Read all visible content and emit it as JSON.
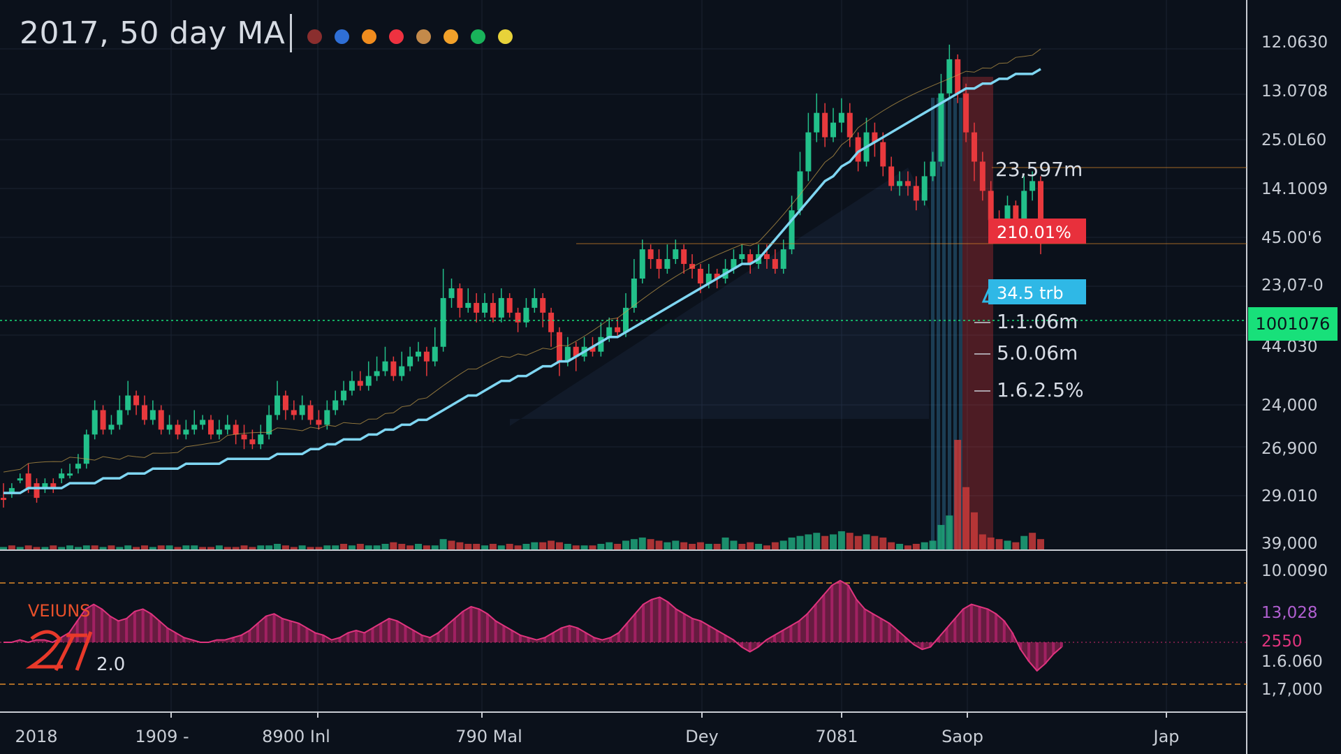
{
  "title": "2017, 50 day MA",
  "legend_dots": [
    "#8a2e2e",
    "#2f6fd6",
    "#f08c1e",
    "#ee3240",
    "#c48a4a",
    "#f2a12a",
    "#19b35a",
    "#e8d23a"
  ],
  "colors": {
    "up": "#22c08a",
    "down": "#e8393d",
    "ma": "#7fd6f2",
    "bg": "#0b111b",
    "grid": "#1b2432",
    "indicator": "#d42a6e",
    "current_price_badge": "#18e07a",
    "pct_badge": "#e8303c",
    "trb_badge": "#2fb8e6"
  },
  "chart_data": {
    "type": "candlestick",
    "title": "2017, 50 day MA",
    "y_tick_labels": [
      "12.0630",
      "13.0708",
      "25.0L60",
      "14.1009",
      "45.00'6",
      "23,07-0",
      "44.030",
      "24,000",
      "26,900",
      "29.010",
      "39,000"
    ],
    "x_tick_labels": [
      "2018",
      "1909 -",
      "8900 Inl",
      "790 Mal",
      "Dey",
      "7081",
      "Saop",
      "Jap"
    ],
    "indicator_tick_labels": [
      "10.0090",
      "13,028",
      "2550",
      "1.6.060",
      "1,7,000"
    ],
    "current_price_label": "1001076",
    "annotations": [
      "23,597m",
      "210.01%",
      "34.5 trb",
      "1.1.06m",
      "5.0.06m",
      "1.6.2.5%"
    ],
    "indicator_label": "VEIUNS",
    "indicator_value": "2.0",
    "ma_label": "50 day MA",
    "price_scale": "relative, 0 = chart bottom, 100 = chart top",
    "candles": [
      [
        5,
        5,
        8,
        3,
        "d"
      ],
      [
        7,
        6,
        8,
        5,
        "u"
      ],
      [
        9,
        9,
        10,
        8,
        "u"
      ],
      [
        10,
        7,
        12,
        6,
        "d"
      ],
      [
        8,
        5,
        9,
        4,
        "d"
      ],
      [
        7,
        8,
        9,
        6,
        "u"
      ],
      [
        8,
        7,
        9,
        6,
        "d"
      ],
      [
        9,
        10,
        11,
        8,
        "u"
      ],
      [
        10,
        10,
        12,
        9,
        "u"
      ],
      [
        11,
        12,
        14,
        10,
        "u"
      ],
      [
        12,
        18,
        19,
        11,
        "u"
      ],
      [
        18,
        23,
        25,
        17,
        "u"
      ],
      [
        23,
        19,
        24,
        18,
        "d"
      ],
      [
        19,
        20,
        22,
        18,
        "u"
      ],
      [
        20,
        23,
        26,
        19,
        "u"
      ],
      [
        23,
        26,
        29,
        22,
        "u"
      ],
      [
        26,
        24,
        27,
        22,
        "d"
      ],
      [
        24,
        21,
        26,
        20,
        "d"
      ],
      [
        21,
        23,
        25,
        20,
        "u"
      ],
      [
        23,
        19,
        24,
        18,
        "d"
      ],
      [
        19,
        20,
        22,
        18,
        "u"
      ],
      [
        20,
        18,
        21,
        17,
        "d"
      ],
      [
        18,
        19,
        21,
        17,
        "u"
      ],
      [
        19,
        20,
        23,
        18,
        "u"
      ],
      [
        20,
        21,
        22,
        19,
        "u"
      ],
      [
        21,
        18,
        22,
        17,
        "d"
      ],
      [
        18,
        19,
        21,
        17,
        "u"
      ],
      [
        19,
        20,
        22,
        18,
        "u"
      ],
      [
        20,
        18,
        21,
        16,
        "d"
      ],
      [
        18,
        17,
        20,
        15,
        "d"
      ],
      [
        17,
        16,
        19,
        15,
        "d"
      ],
      [
        16,
        18,
        20,
        15,
        "u"
      ],
      [
        18,
        22,
        24,
        17,
        "u"
      ],
      [
        22,
        26,
        29,
        21,
        "u"
      ],
      [
        26,
        23,
        27,
        21,
        "d"
      ],
      [
        23,
        22,
        25,
        21,
        "d"
      ],
      [
        22,
        24,
        26,
        21,
        "u"
      ],
      [
        24,
        21,
        25,
        20,
        "d"
      ],
      [
        21,
        20,
        23,
        19,
        "d"
      ],
      [
        20,
        23,
        25,
        19,
        "u"
      ],
      [
        23,
        25,
        27,
        22,
        "u"
      ],
      [
        25,
        27,
        29,
        24,
        "u"
      ],
      [
        27,
        29,
        31,
        26,
        "u"
      ],
      [
        29,
        28,
        31,
        27,
        "d"
      ],
      [
        28,
        30,
        33,
        27,
        "u"
      ],
      [
        30,
        31,
        34,
        29,
        "u"
      ],
      [
        31,
        33,
        36,
        30,
        "u"
      ],
      [
        33,
        30,
        34,
        29,
        "d"
      ],
      [
        30,
        32,
        35,
        29,
        "u"
      ],
      [
        32,
        34,
        36,
        31,
        "u"
      ],
      [
        34,
        35,
        37,
        33,
        "u"
      ],
      [
        35,
        33,
        36,
        30,
        "d"
      ],
      [
        33,
        36,
        40,
        32,
        "u"
      ],
      [
        36,
        46,
        52,
        35,
        "u"
      ],
      [
        46,
        48,
        50,
        44,
        "u"
      ],
      [
        48,
        44,
        49,
        42,
        "d"
      ],
      [
        44,
        45,
        48,
        43,
        "u"
      ],
      [
        45,
        43,
        47,
        41,
        "d"
      ],
      [
        43,
        45,
        47,
        42,
        "u"
      ],
      [
        45,
        42,
        47,
        41,
        "d"
      ],
      [
        42,
        46,
        48,
        41,
        "u"
      ],
      [
        46,
        43,
        47,
        42,
        "d"
      ],
      [
        43,
        41,
        44,
        39,
        "d"
      ],
      [
        41,
        44,
        46,
        40,
        "u"
      ],
      [
        44,
        46,
        48,
        43,
        "u"
      ],
      [
        46,
        43,
        47,
        40,
        "d"
      ],
      [
        43,
        39,
        44,
        36,
        "d"
      ],
      [
        39,
        33,
        40,
        30,
        "d"
      ],
      [
        33,
        36,
        38,
        32,
        "u"
      ],
      [
        36,
        34,
        37,
        31,
        "d"
      ],
      [
        34,
        36,
        38,
        33,
        "u"
      ],
      [
        36,
        35,
        38,
        34,
        "d"
      ],
      [
        35,
        38,
        41,
        34,
        "u"
      ],
      [
        38,
        40,
        42,
        37,
        "u"
      ],
      [
        40,
        39,
        42,
        38,
        "d"
      ],
      [
        39,
        44,
        47,
        38,
        "u"
      ],
      [
        44,
        50,
        54,
        43,
        "u"
      ],
      [
        50,
        56,
        58,
        49,
        "u"
      ],
      [
        56,
        54,
        57,
        52,
        "d"
      ],
      [
        54,
        52,
        56,
        50,
        "d"
      ],
      [
        52,
        54,
        57,
        51,
        "u"
      ],
      [
        54,
        56,
        58,
        53,
        "u"
      ],
      [
        56,
        53,
        57,
        51,
        "d"
      ],
      [
        53,
        52,
        55,
        50,
        "d"
      ],
      [
        52,
        49,
        53,
        47,
        "d"
      ],
      [
        49,
        51,
        53,
        48,
        "u"
      ],
      [
        51,
        50,
        52,
        48,
        "d"
      ],
      [
        50,
        52,
        54,
        49,
        "u"
      ],
      [
        52,
        54,
        56,
        51,
        "u"
      ],
      [
        54,
        55,
        57,
        53,
        "u"
      ],
      [
        55,
        53,
        56,
        51,
        "d"
      ],
      [
        53,
        55,
        57,
        52,
        "u"
      ],
      [
        55,
        54,
        57,
        52,
        "d"
      ],
      [
        54,
        52,
        56,
        51,
        "d"
      ],
      [
        52,
        56,
        58,
        51,
        "u"
      ],
      [
        56,
        64,
        67,
        55,
        "u"
      ],
      [
        64,
        72,
        76,
        63,
        "u"
      ],
      [
        72,
        80,
        84,
        70,
        "u"
      ],
      [
        80,
        84,
        88,
        78,
        "u"
      ],
      [
        84,
        79,
        86,
        77,
        "d"
      ],
      [
        79,
        82,
        85,
        78,
        "u"
      ],
      [
        82,
        84,
        87,
        80,
        "u"
      ],
      [
        84,
        79,
        86,
        77,
        "d"
      ],
      [
        79,
        74,
        80,
        72,
        "d"
      ],
      [
        74,
        80,
        83,
        73,
        "u"
      ],
      [
        80,
        78,
        82,
        75,
        "d"
      ],
      [
        78,
        73,
        80,
        71,
        "d"
      ],
      [
        73,
        69,
        75,
        68,
        "d"
      ],
      [
        69,
        70,
        72,
        67,
        "u"
      ],
      [
        70,
        69,
        72,
        67,
        "d"
      ],
      [
        69,
        66,
        71,
        64,
        "d"
      ],
      [
        66,
        71,
        74,
        65,
        "u"
      ],
      [
        71,
        74,
        76,
        70,
        "u"
      ],
      [
        74,
        88,
        92,
        73,
        "u"
      ],
      [
        88,
        95,
        98,
        87,
        "u"
      ],
      [
        95,
        88,
        96,
        86,
        "d"
      ],
      [
        88,
        80,
        90,
        78,
        "d"
      ],
      [
        80,
        74,
        82,
        70,
        "d"
      ],
      [
        74,
        68,
        76,
        66,
        "d"
      ],
      [
        68,
        62,
        70,
        60,
        "d"
      ],
      [
        62,
        60,
        64,
        58,
        "d"
      ],
      [
        60,
        65,
        67,
        59,
        "u"
      ],
      [
        65,
        62,
        66,
        58,
        "d"
      ],
      [
        62,
        68,
        71,
        61,
        "u"
      ],
      [
        68,
        70,
        72,
        66,
        "u"
      ],
      [
        70,
        60,
        71,
        55,
        "d"
      ]
    ],
    "volumes": [
      [
        2,
        "u"
      ],
      [
        3,
        "d"
      ],
      [
        2,
        "u"
      ],
      [
        3,
        "d"
      ],
      [
        2,
        "d"
      ],
      [
        2,
        "u"
      ],
      [
        3,
        "d"
      ],
      [
        2,
        "u"
      ],
      [
        3,
        "u"
      ],
      [
        2,
        "u"
      ],
      [
        3,
        "u"
      ],
      [
        3,
        "d"
      ],
      [
        2,
        "u"
      ],
      [
        3,
        "d"
      ],
      [
        2,
        "u"
      ],
      [
        3,
        "u"
      ],
      [
        2,
        "d"
      ],
      [
        3,
        "d"
      ],
      [
        2,
        "u"
      ],
      [
        3,
        "d"
      ],
      [
        3,
        "u"
      ],
      [
        2,
        "d"
      ],
      [
        3,
        "u"
      ],
      [
        3,
        "u"
      ],
      [
        2,
        "d"
      ],
      [
        2,
        "d"
      ],
      [
        3,
        "u"
      ],
      [
        2,
        "d"
      ],
      [
        2,
        "d"
      ],
      [
        3,
        "d"
      ],
      [
        2,
        "d"
      ],
      [
        3,
        "u"
      ],
      [
        3,
        "u"
      ],
      [
        4,
        "u"
      ],
      [
        3,
        "d"
      ],
      [
        2,
        "d"
      ],
      [
        3,
        "u"
      ],
      [
        2,
        "d"
      ],
      [
        2,
        "d"
      ],
      [
        3,
        "u"
      ],
      [
        3,
        "u"
      ],
      [
        4,
        "d"
      ],
      [
        3,
        "u"
      ],
      [
        4,
        "d"
      ],
      [
        3,
        "u"
      ],
      [
        3,
        "u"
      ],
      [
        4,
        "u"
      ],
      [
        5,
        "d"
      ],
      [
        4,
        "d"
      ],
      [
        3,
        "d"
      ],
      [
        4,
        "u"
      ],
      [
        3,
        "d"
      ],
      [
        3,
        "u"
      ],
      [
        7,
        "u"
      ],
      [
        6,
        "d"
      ],
      [
        5,
        "d"
      ],
      [
        4,
        "d"
      ],
      [
        4,
        "d"
      ],
      [
        3,
        "u"
      ],
      [
        4,
        "d"
      ],
      [
        3,
        "u"
      ],
      [
        4,
        "d"
      ],
      [
        3,
        "d"
      ],
      [
        4,
        "u"
      ],
      [
        5,
        "u"
      ],
      [
        5,
        "d"
      ],
      [
        6,
        "d"
      ],
      [
        5,
        "d"
      ],
      [
        4,
        "u"
      ],
      [
        3,
        "d"
      ],
      [
        3,
        "u"
      ],
      [
        3,
        "d"
      ],
      [
        4,
        "u"
      ],
      [
        5,
        "u"
      ],
      [
        4,
        "d"
      ],
      [
        6,
        "u"
      ],
      [
        7,
        "u"
      ],
      [
        8,
        "u"
      ],
      [
        7,
        "d"
      ],
      [
        6,
        "d"
      ],
      [
        5,
        "u"
      ],
      [
        6,
        "u"
      ],
      [
        5,
        "d"
      ],
      [
        4,
        "d"
      ],
      [
        5,
        "d"
      ],
      [
        4,
        "u"
      ],
      [
        4,
        "d"
      ],
      [
        8,
        "u"
      ],
      [
        6,
        "u"
      ],
      [
        4,
        "d"
      ],
      [
        5,
        "d"
      ],
      [
        4,
        "u"
      ],
      [
        3,
        "d"
      ],
      [
        5,
        "d"
      ],
      [
        6,
        "u"
      ],
      [
        8,
        "u"
      ],
      [
        9,
        "u"
      ],
      [
        10,
        "u"
      ],
      [
        11,
        "u"
      ],
      [
        9,
        "d"
      ],
      [
        10,
        "u"
      ],
      [
        12,
        "u"
      ],
      [
        11,
        "d"
      ],
      [
        9,
        "d"
      ],
      [
        10,
        "u"
      ],
      [
        9,
        "d"
      ],
      [
        8,
        "d"
      ],
      [
        5,
        "d"
      ],
      [
        4,
        "u"
      ],
      [
        3,
        "d"
      ],
      [
        4,
        "d"
      ],
      [
        5,
        "u"
      ],
      [
        6,
        "u"
      ],
      [
        16,
        "u"
      ],
      [
        22,
        "u"
      ],
      [
        70,
        "d"
      ],
      [
        40,
        "d"
      ],
      [
        24,
        "d"
      ],
      [
        10,
        "d"
      ],
      [
        8,
        "d"
      ],
      [
        7,
        "d"
      ],
      [
        6,
        "u"
      ],
      [
        5,
        "d"
      ],
      [
        9,
        "u"
      ],
      [
        11,
        "d"
      ],
      [
        7,
        "d"
      ]
    ],
    "ma": [
      6,
      6,
      6,
      7,
      7,
      7,
      7,
      7,
      8,
      8,
      8,
      8,
      9,
      9,
      9,
      10,
      10,
      10,
      11,
      11,
      11,
      11,
      12,
      12,
      12,
      12,
      12,
      13,
      13,
      13,
      13,
      13,
      13,
      14,
      14,
      14,
      14,
      15,
      15,
      16,
      16,
      17,
      17,
      17,
      18,
      18,
      19,
      19,
      20,
      20,
      21,
      21,
      22,
      23,
      24,
      25,
      26,
      26,
      27,
      28,
      29,
      29,
      30,
      30,
      31,
      32,
      32,
      33,
      33,
      34,
      35,
      36,
      37,
      38,
      38,
      39,
      40,
      41,
      42,
      43,
      44,
      45,
      46,
      47,
      48,
      49,
      50,
      51,
      52,
      53,
      53,
      54,
      56,
      58,
      60,
      62,
      64,
      66,
      68,
      70,
      71,
      73,
      74,
      76,
      77,
      78,
      79,
      80,
      81,
      82,
      83,
      84,
      85,
      86,
      87,
      88,
      89,
      89,
      90,
      90,
      91,
      91,
      92,
      92,
      92,
      93
    ],
    "indicator": [
      0,
      0,
      1,
      0,
      1,
      1,
      0,
      2,
      4,
      9,
      14,
      16,
      14,
      11,
      9,
      10,
      13,
      14,
      12,
      9,
      6,
      4,
      2,
      1,
      0,
      0,
      1,
      1,
      2,
      3,
      5,
      8,
      11,
      12,
      10,
      9,
      8,
      6,
      4,
      3,
      1,
      2,
      4,
      5,
      4,
      6,
      8,
      10,
      9,
      7,
      5,
      3,
      2,
      4,
      7,
      10,
      13,
      15,
      14,
      12,
      9,
      7,
      5,
      3,
      2,
      1,
      2,
      4,
      6,
      7,
      6,
      4,
      2,
      1,
      2,
      4,
      8,
      12,
      16,
      18,
      19,
      17,
      14,
      12,
      10,
      9,
      7,
      5,
      3,
      1,
      -2,
      -4,
      -2,
      1,
      3,
      5,
      7,
      9,
      12,
      16,
      20,
      24,
      26,
      24,
      18,
      14,
      12,
      10,
      8,
      5,
      2,
      -1,
      -3,
      -2,
      2,
      6,
      10,
      14,
      16,
      15,
      14,
      12,
      9,
      4,
      -3,
      -8,
      -12,
      -9,
      -5,
      -2
    ]
  }
}
